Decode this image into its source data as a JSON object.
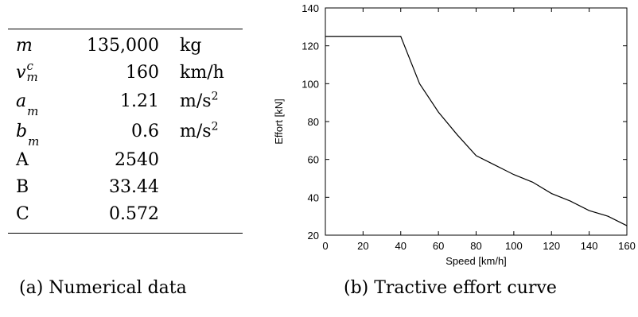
{
  "table": {
    "rows": [
      {
        "symbol": "m",
        "value": "135,000",
        "unit": "kg"
      },
      {
        "symbol": "v",
        "symbol_sup": "c",
        "symbol_sub": "m",
        "value": "160",
        "unit": "km/h"
      },
      {
        "symbol": "a",
        "symbol_sub": "m",
        "value": "1.21",
        "unit": "m/s",
        "unit_sup": "2"
      },
      {
        "symbol": "b",
        "symbol_sub": "m",
        "value": "0.6",
        "unit": "m/s",
        "unit_sup": "2"
      },
      {
        "symbol": "A",
        "value": "2540",
        "unit": ""
      },
      {
        "symbol": "B",
        "value": "33.44",
        "unit": ""
      },
      {
        "symbol": "C",
        "value": "0.572",
        "unit": ""
      }
    ],
    "caption": "(a) Numerical data"
  },
  "chart_caption": "(b) Tractive effort curve",
  "chart_data": {
    "type": "line",
    "title": "",
    "xlabel": "Speed [km/h]",
    "ylabel": "Effort [kN]",
    "xlim": [
      0,
      160
    ],
    "ylim": [
      20,
      140
    ],
    "x_ticks": [
      0,
      20,
      40,
      60,
      80,
      100,
      120,
      140,
      160
    ],
    "y_ticks": [
      20,
      40,
      60,
      80,
      100,
      120,
      140
    ],
    "grid": false,
    "series": [
      {
        "x": [
          0,
          40,
          50,
          60,
          70,
          80,
          90,
          100,
          110,
          120,
          130,
          140,
          150,
          160
        ],
        "y": [
          125,
          125,
          100,
          85,
          73,
          62,
          57,
          52,
          48,
          42,
          38,
          33,
          30,
          25
        ]
      }
    ]
  }
}
